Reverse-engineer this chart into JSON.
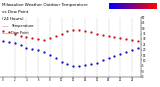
{
  "title": "Milwaukee Weather Outdoor Temperature",
  "subtitle1": "vs Dew Point",
  "subtitle2": "(24 Hours)",
  "title_fontsize": 3.0,
  "temp_color": "#cc0000",
  "dew_color": "#0000cc",
  "background": "#ffffff",
  "grid_color": "#999999",
  "ylabel_color": "#000000",
  "hours": [
    0,
    1,
    2,
    3,
    4,
    5,
    6,
    7,
    8,
    9,
    10,
    11,
    12,
    13,
    14,
    15,
    16,
    17,
    18,
    19,
    20,
    21,
    22,
    23
  ],
  "temp": [
    37,
    36,
    35,
    33,
    32,
    31,
    30,
    29,
    31,
    33,
    35,
    37,
    38,
    38,
    37,
    36,
    35,
    34,
    33,
    32,
    31,
    30,
    29,
    28
  ],
  "dew": [
    28,
    27,
    26,
    24,
    22,
    21,
    20,
    18,
    15,
    12,
    9,
    7,
    5,
    5,
    6,
    7,
    8,
    10,
    12,
    14,
    16,
    18,
    20,
    22
  ],
  "ylim_min": -5,
  "ylim_max": 50,
  "yticks": [
    -5,
    0,
    5,
    10,
    15,
    20,
    25,
    30,
    35,
    40,
    45,
    50
  ],
  "ytick_labels": [
    "-5",
    "0",
    "5",
    "10",
    "15",
    "20",
    "25",
    "30",
    "35",
    "40",
    "45",
    "50"
  ],
  "vlines": [
    2,
    4,
    6,
    8,
    10,
    12,
    14,
    16,
    18,
    20,
    22
  ],
  "colorbar_blue": "#0000ff",
  "colorbar_red": "#ff0000",
  "legend_temp": "Temperature",
  "legend_dew": "Dew Point",
  "legend_fontsize": 2.5
}
